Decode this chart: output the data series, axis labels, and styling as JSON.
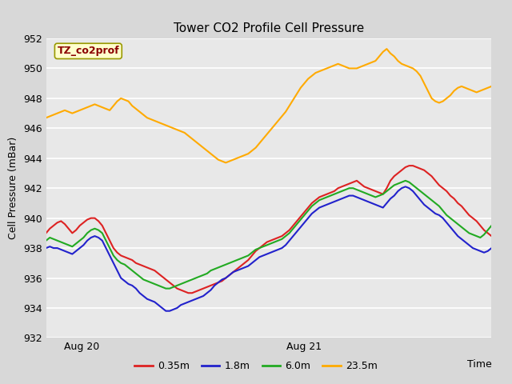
{
  "title": "Tower CO2 Profile Cell Pressure",
  "ylabel": "Cell Pressure (mBar)",
  "xlabel": "Time",
  "ylim": [
    932,
    952
  ],
  "yticks": [
    932,
    934,
    936,
    938,
    940,
    942,
    944,
    946,
    948,
    950,
    952
  ],
  "xtick_labels": [
    "Aug 20",
    "Aug 21"
  ],
  "bg_color": "#e8e8e8",
  "plot_bg": "#e8e8e8",
  "legend_label": "TZ_co2prof",
  "legend_box_color": "#ffffcc",
  "legend_text_color": "#8b0000",
  "series_labels": [
    "0.35m",
    "1.8m",
    "6.0m",
    "23.5m"
  ],
  "series_colors": [
    "#dd2222",
    "#2222cc",
    "#22aa22",
    "#ffaa00"
  ],
  "series_lw": [
    1.5,
    1.5,
    1.5,
    1.5
  ],
  "n_points": 120,
  "red_y": [
    939.0,
    939.3,
    939.5,
    939.7,
    939.8,
    939.6,
    939.3,
    939.0,
    939.2,
    939.5,
    939.7,
    939.9,
    940.0,
    940.0,
    939.8,
    939.5,
    939.0,
    938.5,
    938.0,
    937.7,
    937.5,
    937.4,
    937.3,
    937.2,
    937.0,
    936.9,
    936.8,
    936.7,
    936.6,
    936.5,
    936.3,
    936.1,
    935.9,
    935.7,
    935.5,
    935.3,
    935.2,
    935.1,
    935.0,
    935.0,
    935.1,
    935.2,
    935.3,
    935.4,
    935.5,
    935.6,
    935.7,
    935.8,
    936.0,
    936.2,
    936.4,
    936.6,
    936.8,
    937.0,
    937.2,
    937.5,
    937.8,
    938.0,
    938.2,
    938.4,
    938.5,
    938.6,
    938.7,
    938.8,
    939.0,
    939.2,
    939.5,
    939.8,
    940.1,
    940.4,
    940.7,
    941.0,
    941.2,
    941.4,
    941.5,
    941.6,
    941.7,
    941.8,
    942.0,
    942.1,
    942.2,
    942.3,
    942.4,
    942.5,
    942.3,
    942.1,
    942.0,
    941.9,
    941.8,
    941.7,
    941.6,
    942.0,
    942.5,
    942.8,
    943.0,
    943.2,
    943.4,
    943.5,
    943.5,
    943.4,
    943.3,
    943.2,
    943.0,
    942.8,
    942.5,
    942.2,
    942.0,
    941.8,
    941.5,
    941.3,
    941.0,
    940.8,
    940.5,
    940.2,
    940.0,
    939.8,
    939.5,
    939.2,
    939.0,
    938.8
  ],
  "blue_y": [
    938.0,
    938.1,
    938.0,
    938.0,
    937.9,
    937.8,
    937.7,
    937.6,
    937.8,
    938.0,
    938.2,
    938.5,
    938.7,
    938.8,
    938.7,
    938.5,
    938.0,
    937.5,
    937.0,
    936.5,
    936.0,
    935.8,
    935.6,
    935.5,
    935.3,
    935.0,
    934.8,
    934.6,
    934.5,
    934.4,
    934.2,
    934.0,
    933.8,
    933.8,
    933.9,
    934.0,
    934.2,
    934.3,
    934.4,
    934.5,
    934.6,
    934.7,
    934.8,
    935.0,
    935.2,
    935.5,
    935.7,
    935.9,
    936.0,
    936.2,
    936.4,
    936.5,
    936.6,
    936.7,
    936.8,
    937.0,
    937.2,
    937.4,
    937.5,
    937.6,
    937.7,
    937.8,
    937.9,
    938.0,
    938.2,
    938.5,
    938.8,
    939.1,
    939.4,
    939.7,
    940.0,
    940.3,
    940.5,
    940.7,
    940.8,
    940.9,
    941.0,
    941.1,
    941.2,
    941.3,
    941.4,
    941.5,
    941.5,
    941.4,
    941.3,
    941.2,
    941.1,
    941.0,
    940.9,
    940.8,
    940.7,
    941.0,
    941.3,
    941.5,
    941.8,
    942.0,
    942.1,
    942.0,
    941.8,
    941.5,
    941.2,
    940.9,
    940.7,
    940.5,
    940.3,
    940.2,
    940.0,
    939.7,
    939.4,
    939.1,
    938.8,
    938.6,
    938.4,
    938.2,
    938.0,
    937.9,
    937.8,
    937.7,
    937.8,
    938.0
  ],
  "green_y": [
    938.5,
    938.7,
    938.6,
    938.5,
    938.4,
    938.3,
    938.2,
    938.1,
    938.3,
    938.5,
    938.7,
    939.0,
    939.2,
    939.3,
    939.2,
    939.0,
    938.5,
    938.0,
    937.5,
    937.2,
    937.0,
    936.9,
    936.7,
    936.5,
    936.3,
    936.1,
    935.9,
    935.8,
    935.7,
    935.6,
    935.5,
    935.4,
    935.3,
    935.3,
    935.4,
    935.5,
    935.6,
    935.7,
    935.8,
    935.9,
    936.0,
    936.1,
    936.2,
    936.3,
    936.5,
    936.6,
    936.7,
    936.8,
    936.9,
    937.0,
    937.1,
    937.2,
    937.3,
    937.4,
    937.5,
    937.7,
    937.9,
    938.0,
    938.1,
    938.2,
    938.3,
    938.4,
    938.5,
    938.6,
    938.8,
    939.0,
    939.3,
    939.6,
    939.9,
    940.2,
    940.5,
    940.8,
    941.0,
    941.2,
    941.3,
    941.4,
    941.5,
    941.6,
    941.7,
    941.8,
    941.9,
    942.0,
    942.0,
    941.9,
    941.8,
    941.7,
    941.6,
    941.5,
    941.4,
    941.5,
    941.6,
    941.8,
    942.0,
    942.2,
    942.3,
    942.4,
    942.5,
    942.4,
    942.2,
    942.0,
    941.8,
    941.6,
    941.4,
    941.2,
    941.0,
    940.8,
    940.5,
    940.2,
    940.0,
    939.8,
    939.6,
    939.4,
    939.2,
    939.0,
    938.9,
    938.8,
    938.7,
    938.9,
    939.2,
    939.5
  ],
  "orange_y": [
    946.7,
    946.8,
    946.9,
    947.0,
    947.1,
    947.2,
    947.1,
    947.0,
    947.1,
    947.2,
    947.3,
    947.4,
    947.5,
    947.6,
    947.5,
    947.4,
    947.3,
    947.2,
    947.5,
    947.8,
    948.0,
    947.9,
    947.8,
    947.5,
    947.3,
    947.1,
    946.9,
    946.7,
    946.6,
    946.5,
    946.4,
    946.3,
    946.2,
    946.1,
    946.0,
    945.9,
    945.8,
    945.7,
    945.5,
    945.3,
    945.1,
    944.9,
    944.7,
    944.5,
    944.3,
    944.1,
    943.9,
    943.8,
    943.7,
    943.8,
    943.9,
    944.0,
    944.1,
    944.2,
    944.3,
    944.5,
    944.7,
    945.0,
    945.3,
    945.6,
    945.9,
    946.2,
    946.5,
    946.8,
    947.1,
    947.5,
    947.9,
    948.3,
    948.7,
    949.0,
    949.3,
    949.5,
    949.7,
    949.8,
    949.9,
    950.0,
    950.1,
    950.2,
    950.3,
    950.2,
    950.1,
    950.0,
    950.0,
    950.0,
    950.1,
    950.2,
    950.3,
    950.4,
    950.5,
    950.8,
    951.1,
    951.3,
    951.0,
    950.8,
    950.5,
    950.3,
    950.2,
    950.1,
    950.0,
    949.8,
    949.5,
    949.0,
    948.5,
    948.0,
    947.8,
    947.7,
    947.8,
    948.0,
    948.2,
    948.5,
    948.7,
    948.8,
    948.7,
    948.6,
    948.5,
    948.4,
    948.5,
    948.6,
    948.7,
    948.8
  ]
}
